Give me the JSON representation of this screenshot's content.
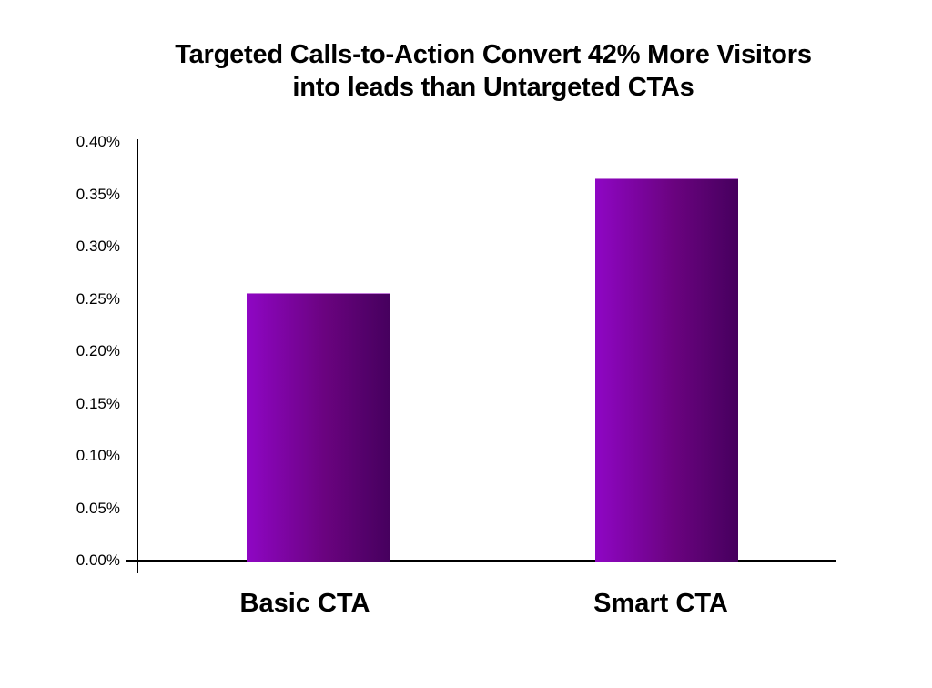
{
  "chart_data": {
    "type": "bar",
    "title": "Targeted Calls-to-Action Convert 42% More Visitors into leads than Untargeted CTAs",
    "title_lines": [
      "Targeted Calls-to-Action Convert 42% More Visitors",
      "into leads than Untargeted CTAs"
    ],
    "categories": [
      "Basic CTA",
      "Smart CTA"
    ],
    "values": [
      0.256,
      0.365
    ],
    "value_unit": "%",
    "xlabel": "",
    "ylabel": "",
    "ylim": [
      0,
      0.4
    ],
    "y_ticks": [
      "0.40%",
      "0.35%",
      "0.30%",
      "0.25%",
      "0.20%",
      "0.15%",
      "0.10%",
      "0.05%",
      "0.00%"
    ],
    "grid": false,
    "legend": null,
    "bar_colors": {
      "left": "#8f06c4",
      "right": "#46005e"
    }
  }
}
